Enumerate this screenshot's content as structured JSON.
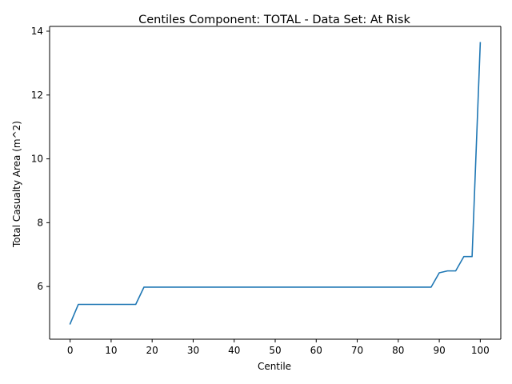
{
  "chart_data": {
    "type": "line",
    "title": "Centiles Component: TOTAL - Data Set: At Risk",
    "xlabel": "Centile",
    "ylabel": "Total Casualty Area (m^2)",
    "xlim": [
      -5,
      105
    ],
    "ylim": [
      4.35,
      14.15
    ],
    "xticks": [
      0,
      10,
      20,
      30,
      40,
      50,
      60,
      70,
      80,
      90,
      100
    ],
    "yticks": [
      6,
      8,
      10,
      12,
      14
    ],
    "grid": false,
    "line_color": "#1f77b4",
    "series": [
      {
        "x": [
          0,
          2,
          4,
          6,
          8,
          10,
          12,
          14,
          16,
          18,
          20,
          30,
          40,
          50,
          60,
          70,
          80,
          86,
          88,
          90,
          92,
          94,
          96,
          98,
          100
        ],
        "y": [
          4.83,
          5.44,
          5.44,
          5.44,
          5.44,
          5.44,
          5.44,
          5.44,
          5.44,
          5.98,
          5.98,
          5.98,
          5.98,
          5.98,
          5.98,
          5.98,
          5.98,
          5.98,
          5.98,
          6.43,
          6.49,
          6.49,
          6.94,
          6.94,
          13.64
        ]
      }
    ]
  }
}
